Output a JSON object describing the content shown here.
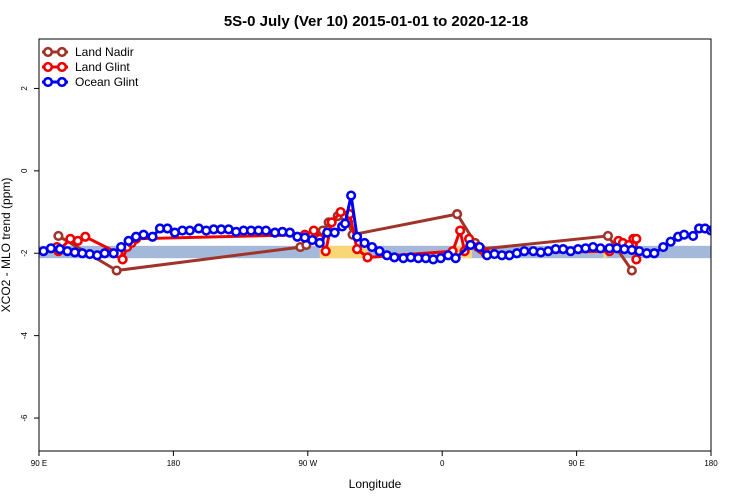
{
  "chart_data": {
    "type": "line",
    "title": "5S-0 July (Ver 10)   2015-01-01 to 2020-12-18",
    "xlabel": "Longitude",
    "ylabel": "XCO2 - MLO trend (ppm)",
    "xlim": [
      90,
      540
    ],
    "ylim": [
      -6.8,
      3.2
    ],
    "x_ticks": [
      {
        "value": 90,
        "label": "90 E"
      },
      {
        "value": 180,
        "label": "180"
      },
      {
        "value": 270,
        "label": "90 W"
      },
      {
        "value": 360,
        "label": "0"
      },
      {
        "value": 450,
        "label": "90 E"
      },
      {
        "value": 540,
        "label": "180"
      }
    ],
    "y_ticks": [
      {
        "value": 2,
        "label": "2"
      },
      {
        "value": 0,
        "label": "0"
      },
      {
        "value": -2,
        "label": "-2"
      },
      {
        "value": -4,
        "label": "-4"
      },
      {
        "value": -6,
        "label": "-6"
      }
    ],
    "grid": false,
    "legend_position": "top-left",
    "land_bar": {
      "y_low": -2.12,
      "y_high": -1.82,
      "ocean_color": "#a4b9d9",
      "land_color": "#f9d676"
    },
    "land_segments": [
      [
        142,
        146
      ],
      [
        278,
        310
      ],
      [
        370,
        380
      ],
      [
        468,
        470
      ]
    ],
    "series": [
      {
        "name": "Land Nadir",
        "color": "#a0342a",
        "points": [
          [
            103,
            -1.58
          ],
          [
            142,
            -2.42
          ],
          [
            265,
            -1.85
          ],
          [
            269,
            -1.8
          ],
          [
            280,
            -1.45
          ],
          [
            284,
            -1.25
          ],
          [
            290,
            -1.1
          ],
          [
            297,
            -1.25
          ],
          [
            300,
            -1.55
          ],
          [
            370,
            -1.05
          ],
          [
            382,
            -1.75
          ],
          [
            386,
            -1.9
          ],
          [
            471,
            -1.58
          ],
          [
            487,
            -2.42
          ]
        ]
      },
      {
        "name": "Land Glint",
        "color": "#ee0000",
        "points": [
          [
            102,
            -1.85
          ],
          [
            103,
            -1.95
          ],
          [
            111,
            -1.65
          ],
          [
            116,
            -1.7
          ],
          [
            121,
            -1.6
          ],
          [
            143,
            -2.0
          ],
          [
            146,
            -2.15
          ],
          [
            149,
            -1.85
          ],
          [
            152,
            -1.75
          ],
          [
            155,
            -1.65
          ],
          [
            268,
            -1.55
          ],
          [
            274,
            -1.45
          ],
          [
            278,
            -1.65
          ],
          [
            282,
            -1.95
          ],
          [
            286,
            -1.25
          ],
          [
            292,
            -1.0
          ],
          [
            298,
            -1.05
          ],
          [
            303,
            -1.9
          ],
          [
            310,
            -2.1
          ],
          [
            367,
            -1.95
          ],
          [
            372,
            -1.45
          ],
          [
            375,
            -1.95
          ],
          [
            378,
            -1.65
          ],
          [
            384,
            -1.85
          ],
          [
            389,
            -2.0
          ],
          [
            472,
            -1.95
          ],
          [
            478,
            -1.7
          ],
          [
            481,
            -1.75
          ],
          [
            485,
            -1.8
          ],
          [
            488,
            -1.65
          ],
          [
            490,
            -1.65
          ],
          [
            490,
            -2.15
          ]
        ]
      },
      {
        "name": "Ocean Glint",
        "color": "#0000ee",
        "points": [
          [
            93,
            -1.95
          ],
          [
            98,
            -1.88
          ],
          [
            104,
            -1.9
          ],
          [
            109,
            -1.95
          ],
          [
            114,
            -1.98
          ],
          [
            119,
            -2.0
          ],
          [
            124,
            -2.02
          ],
          [
            129,
            -2.05
          ],
          [
            134,
            -2.0
          ],
          [
            140,
            -2.0
          ],
          [
            145,
            -1.85
          ],
          [
            150,
            -1.7
          ],
          [
            155,
            -1.6
          ],
          [
            160,
            -1.55
          ],
          [
            166,
            -1.6
          ],
          [
            171,
            -1.4
          ],
          [
            176,
            -1.4
          ],
          [
            181,
            -1.5
          ],
          [
            186,
            -1.45
          ],
          [
            191,
            -1.45
          ],
          [
            197,
            -1.4
          ],
          [
            202,
            -1.45
          ],
          [
            207,
            -1.42
          ],
          [
            212,
            -1.42
          ],
          [
            217,
            -1.42
          ],
          [
            222,
            -1.48
          ],
          [
            227,
            -1.45
          ],
          [
            232,
            -1.45
          ],
          [
            237,
            -1.45
          ],
          [
            242,
            -1.45
          ],
          [
            248,
            -1.5
          ],
          [
            253,
            -1.48
          ],
          [
            258,
            -1.5
          ],
          [
            263,
            -1.6
          ],
          [
            268,
            -1.62
          ],
          [
            273,
            -1.68
          ],
          [
            278,
            -1.75
          ],
          [
            283,
            -1.5
          ],
          [
            288,
            -1.5
          ],
          [
            293,
            -1.35
          ],
          [
            295,
            -1.28
          ],
          [
            299,
            -0.6
          ],
          [
            303,
            -1.6
          ],
          [
            308,
            -1.75
          ],
          [
            313,
            -1.85
          ],
          [
            318,
            -1.95
          ],
          [
            323,
            -2.05
          ],
          [
            328,
            -2.1
          ],
          [
            334,
            -2.12
          ],
          [
            339,
            -2.1
          ],
          [
            344,
            -2.12
          ],
          [
            349,
            -2.12
          ],
          [
            354,
            -2.15
          ],
          [
            359,
            -2.12
          ],
          [
            364,
            -2.05
          ],
          [
            369,
            -2.12
          ],
          [
            379,
            -1.8
          ],
          [
            385,
            -1.85
          ],
          [
            390,
            -2.05
          ],
          [
            395,
            -2.02
          ],
          [
            400,
            -2.05
          ],
          [
            405,
            -2.05
          ],
          [
            410,
            -2.0
          ],
          [
            415,
            -1.95
          ],
          [
            421,
            -1.95
          ],
          [
            426,
            -1.98
          ],
          [
            431,
            -1.95
          ],
          [
            436,
            -1.9
          ],
          [
            441,
            -1.9
          ],
          [
            446,
            -1.95
          ],
          [
            451,
            -1.9
          ],
          [
            456,
            -1.88
          ],
          [
            461,
            -1.85
          ],
          [
            466,
            -1.88
          ],
          [
            472,
            -1.88
          ],
          [
            477,
            -1.88
          ],
          [
            482,
            -1.9
          ],
          [
            487,
            -1.92
          ],
          [
            492,
            -1.95
          ],
          [
            497,
            -2.0
          ],
          [
            502,
            -2.0
          ],
          [
            508,
            -1.85
          ],
          [
            513,
            -1.72
          ],
          [
            518,
            -1.6
          ],
          [
            522,
            -1.55
          ],
          [
            528,
            -1.58
          ],
          [
            532,
            -1.4
          ],
          [
            536,
            -1.4
          ],
          [
            540,
            -1.45
          ],
          [
            542,
            -1.42
          ]
        ]
      }
    ]
  }
}
